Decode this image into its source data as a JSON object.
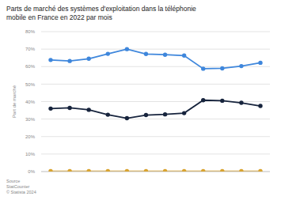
{
  "chart_data": {
    "type": "line",
    "title": "Parts de marché des systèmes d'exploitation dans la téléphonie mobile en France en 2022 par mois",
    "y_label": "Part de marché",
    "annotations": [
      "Source",
      "StatCounter",
      "© Statista 2024"
    ],
    "categories": [
      null,
      null,
      null,
      null,
      null,
      null,
      null,
      null,
      null,
      null,
      null,
      null
    ],
    "series": [
      {
        "color": "#3f87dc",
        "marker": "circle",
        "values": [
          63.8,
          63.2,
          64.5,
          67.3,
          70.0,
          67.2,
          66.8,
          66.3,
          58.8,
          59.0,
          60.3,
          62.2
        ]
      },
      {
        "color": "#17243d",
        "marker": "circle",
        "values": [
          36.0,
          36.4,
          35.3,
          32.5,
          30.5,
          32.3,
          32.7,
          33.4,
          40.8,
          40.5,
          39.3,
          37.5
        ]
      },
      {
        "color": "#d9a431",
        "marker": "circle",
        "values": [
          0.2,
          0.2,
          0.2,
          0.2,
          0.2,
          0.2,
          0.2,
          0.2,
          0.2,
          0.2,
          0.2,
          0.2
        ]
      }
    ],
    "ylim": [
      0,
      80
    ],
    "yticks": [
      {
        "value": 0,
        "label": "0%"
      },
      {
        "value": 10,
        "label": "10%"
      },
      {
        "value": 20,
        "label": "20%"
      },
      {
        "value": 30,
        "label": "30%"
      },
      {
        "value": 40,
        "label": "40%"
      },
      {
        "value": 50,
        "label": "50%"
      },
      {
        "value": 60,
        "label": "60%"
      },
      {
        "value": 70,
        "label": "70%"
      },
      {
        "value": 80,
        "label": "80%"
      }
    ],
    "grid": true,
    "tick_labels": "y"
  }
}
